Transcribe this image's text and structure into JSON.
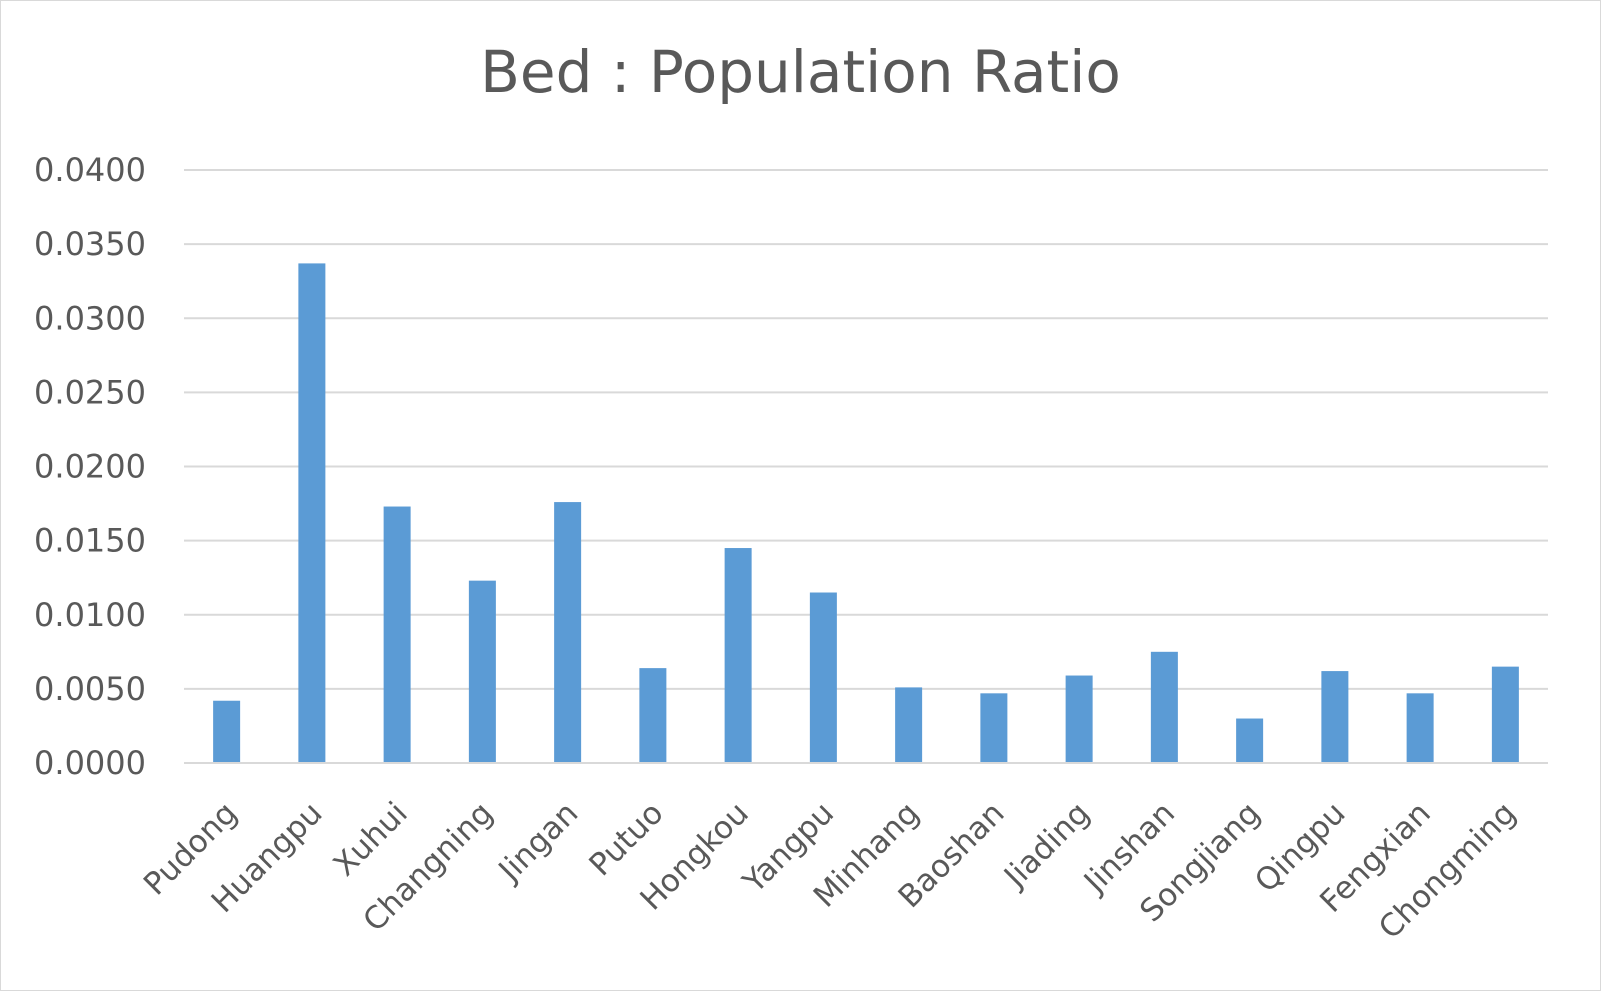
{
  "chart_data": {
    "type": "bar",
    "title": "Bed : Population Ratio",
    "xlabel": "",
    "ylabel": "",
    "categories": [
      "Pudong",
      "Huangpu",
      "Xuhui",
      "Changning",
      "Jingan",
      "Putuo",
      "Hongkou",
      "Yangpu",
      "Minhang",
      "Baoshan",
      "Jiading",
      "Jinshan",
      "Songjiang",
      "Qingpu",
      "Fengxian",
      "Chongming"
    ],
    "values": [
      0.0042,
      0.0337,
      0.0173,
      0.0123,
      0.0176,
      0.0064,
      0.0145,
      0.0115,
      0.0051,
      0.0047,
      0.0059,
      0.0075,
      0.003,
      0.0062,
      0.0047,
      0.0065
    ],
    "ylim": [
      0,
      0.04
    ],
    "yticks": [
      "0.0000",
      "0.0050",
      "0.0100",
      "0.0150",
      "0.0200",
      "0.0250",
      "0.0300",
      "0.0350",
      "0.0400"
    ],
    "grid": true,
    "legend": "none",
    "bar_color": "#5b9bd5",
    "grid_color": "#d9d9d9",
    "text_color": "#595959"
  }
}
